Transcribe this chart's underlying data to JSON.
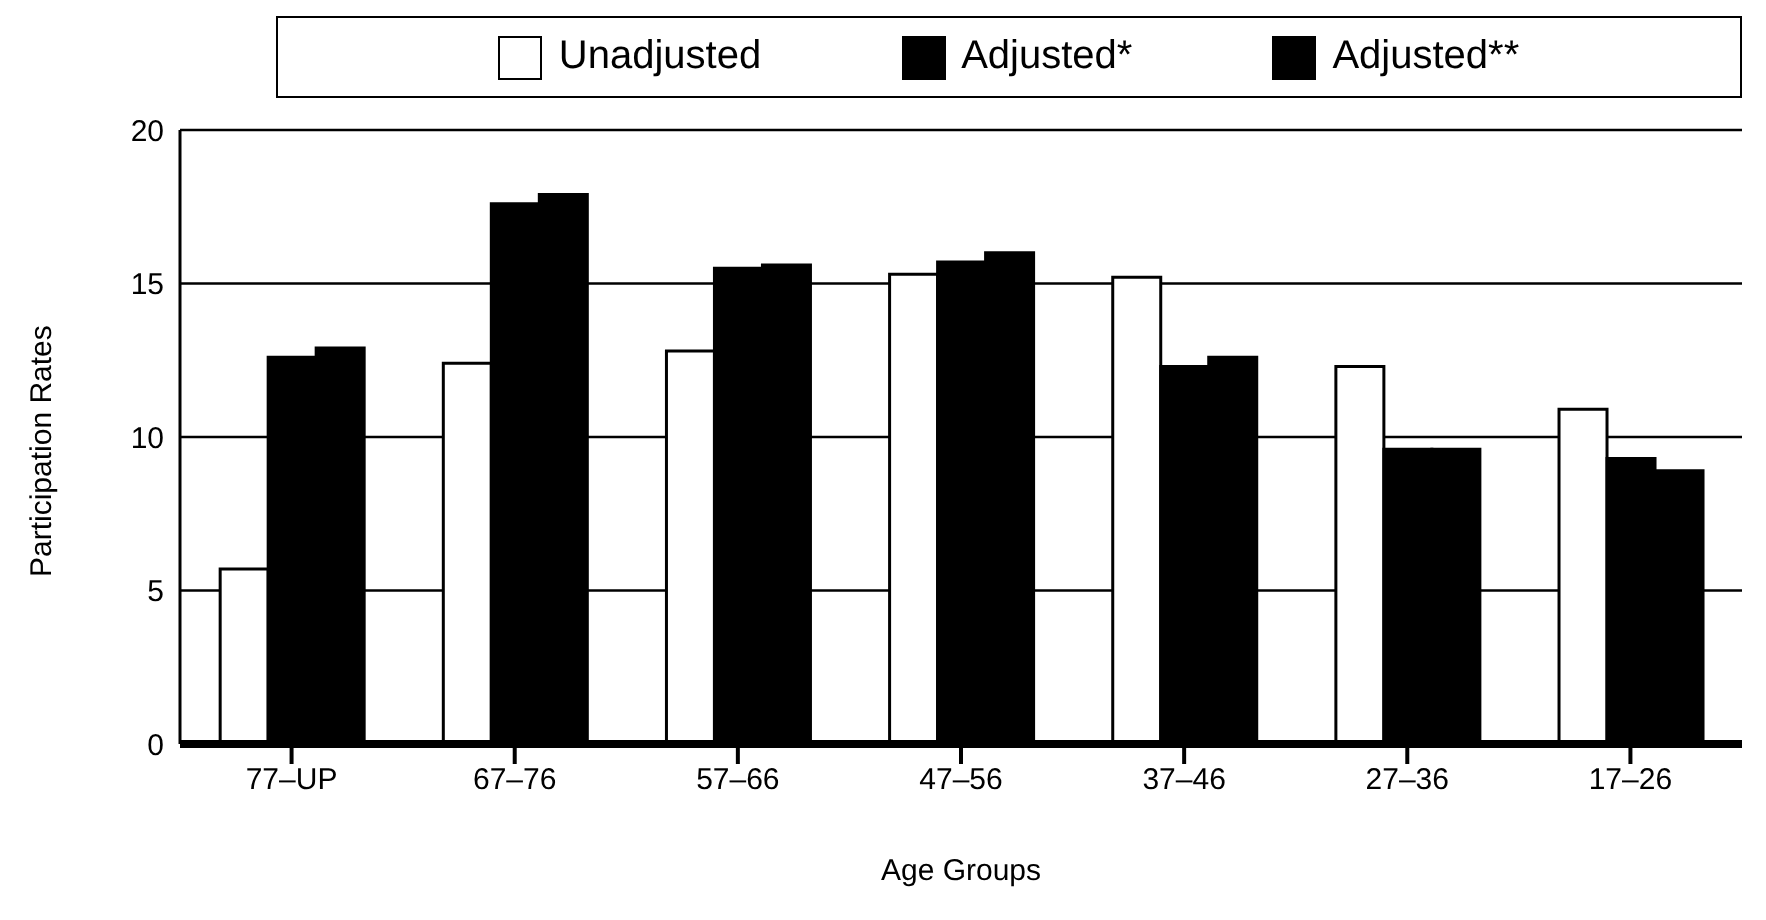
{
  "chart_data": {
    "type": "bar",
    "xlabel": "Age Groups",
    "ylabel": "Participation Rates",
    "categories": [
      "77–UP",
      "67–76",
      "57–66",
      "47–56",
      "37–46",
      "27–36",
      "17–26"
    ],
    "series": [
      {
        "name": "Unadjusted",
        "color": "#ffffff",
        "values": [
          5.7,
          12.4,
          12.8,
          15.3,
          15.2,
          12.3,
          10.9
        ]
      },
      {
        "name": "Adjusted*",
        "color": "#000000",
        "values": [
          12.6,
          17.6,
          15.5,
          15.7,
          12.3,
          9.6,
          9.3
        ]
      },
      {
        "name": "Adjusted**",
        "color": "#000000",
        "values": [
          12.9,
          17.9,
          15.6,
          16.0,
          12.6,
          9.6,
          8.9
        ]
      }
    ],
    "ylim": [
      0,
      20
    ],
    "yticks": [
      0,
      5,
      10,
      15,
      20
    ],
    "grid": "y",
    "legend": "top"
  }
}
